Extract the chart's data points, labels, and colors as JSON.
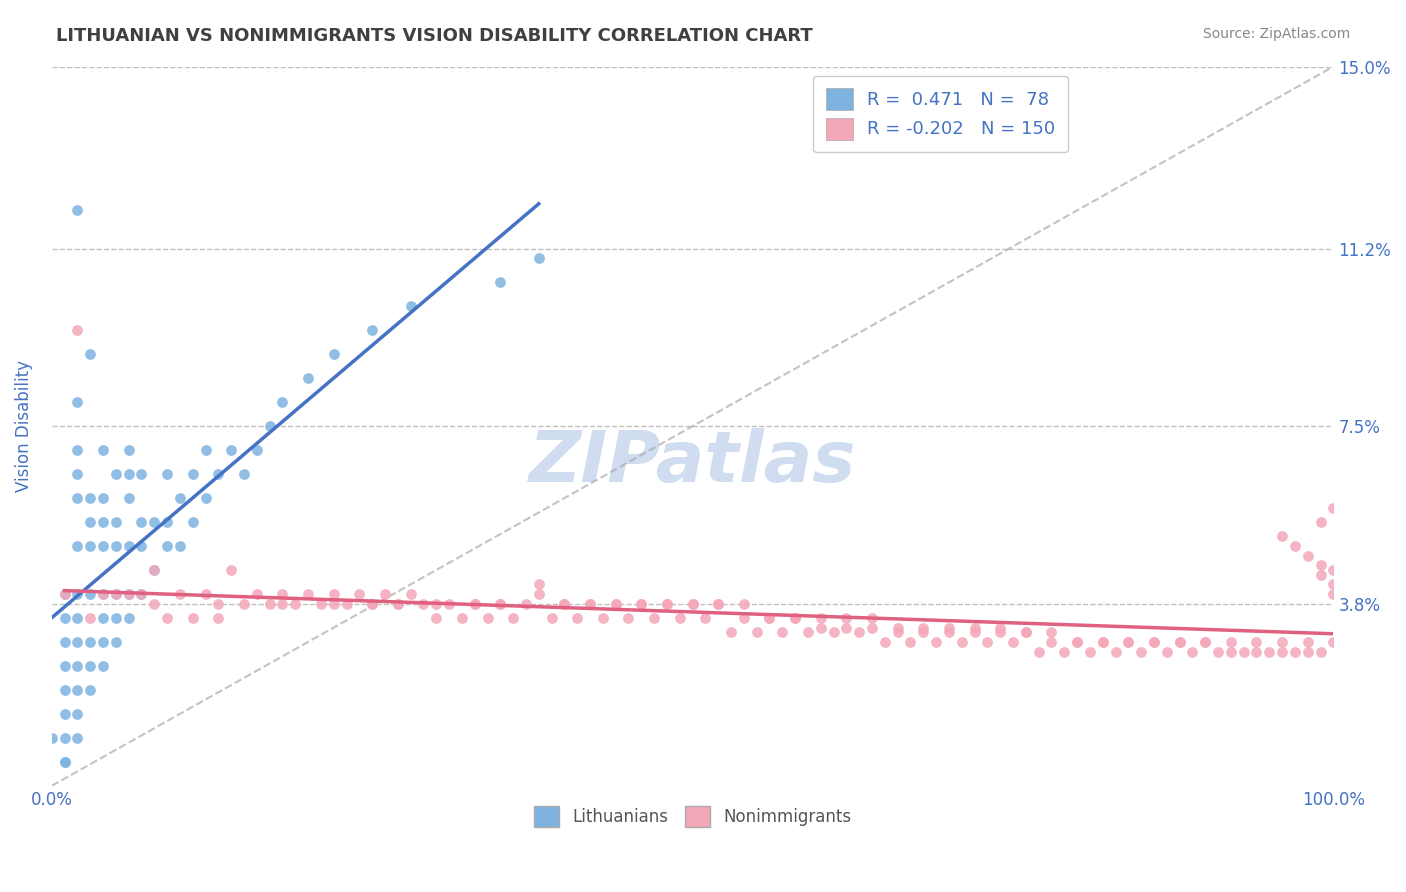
{
  "title": "LITHUANIAN VS NONIMMIGRANTS VISION DISABILITY CORRELATION CHART",
  "source": "Source: ZipAtlas.com",
  "xlabel": "",
  "ylabel": "Vision Disability",
  "legend_labels": [
    "Lithuanians",
    "Nonimmigrants"
  ],
  "r_values": [
    0.471,
    -0.202
  ],
  "n_values": [
    78,
    150
  ],
  "xlim": [
    0.0,
    1.0
  ],
  "ylim": [
    0.0,
    0.15
  ],
  "yticks": [
    0.038,
    0.075,
    0.112,
    0.15
  ],
  "ytick_labels": [
    "3.8%",
    "7.5%",
    "11.2%",
    "15.0%"
  ],
  "xtick_labels": [
    "0.0%",
    "100.0%"
  ],
  "blue_color": "#7EB3E0",
  "pink_color": "#F4A7B9",
  "blue_line_color": "#4472C4",
  "pink_line_color": "#E06080",
  "legend_text_color": "#4472C4",
  "axis_label_color": "#4472C4",
  "title_color": "#404040",
  "grid_color": "#C0C0C0",
  "watermark_text": "ZIPatlas",
  "watermark_color": "#D0DCF0",
  "ref_line_color": "#AAAAAA",
  "background_color": "#FFFFFF",
  "scatter_blue_x": [
    0.0,
    0.01,
    0.01,
    0.01,
    0.01,
    0.01,
    0.01,
    0.01,
    0.01,
    0.01,
    0.02,
    0.02,
    0.02,
    0.02,
    0.02,
    0.02,
    0.02,
    0.02,
    0.02,
    0.02,
    0.02,
    0.02,
    0.02,
    0.03,
    0.03,
    0.03,
    0.03,
    0.03,
    0.03,
    0.03,
    0.03,
    0.04,
    0.04,
    0.04,
    0.04,
    0.04,
    0.04,
    0.04,
    0.04,
    0.05,
    0.05,
    0.05,
    0.05,
    0.05,
    0.05,
    0.06,
    0.06,
    0.06,
    0.06,
    0.06,
    0.06,
    0.07,
    0.07,
    0.07,
    0.07,
    0.08,
    0.08,
    0.09,
    0.09,
    0.09,
    0.1,
    0.1,
    0.11,
    0.11,
    0.12,
    0.12,
    0.13,
    0.14,
    0.15,
    0.16,
    0.17,
    0.18,
    0.2,
    0.22,
    0.25,
    0.28,
    0.35,
    0.38
  ],
  "scatter_blue_y": [
    0.01,
    0.005,
    0.01,
    0.015,
    0.02,
    0.025,
    0.03,
    0.035,
    0.04,
    0.005,
    0.01,
    0.015,
    0.02,
    0.025,
    0.03,
    0.035,
    0.04,
    0.05,
    0.06,
    0.065,
    0.07,
    0.08,
    0.12,
    0.02,
    0.025,
    0.03,
    0.04,
    0.05,
    0.055,
    0.06,
    0.09,
    0.025,
    0.03,
    0.035,
    0.04,
    0.05,
    0.055,
    0.06,
    0.07,
    0.03,
    0.035,
    0.04,
    0.05,
    0.055,
    0.065,
    0.035,
    0.04,
    0.05,
    0.06,
    0.065,
    0.07,
    0.04,
    0.05,
    0.055,
    0.065,
    0.045,
    0.055,
    0.05,
    0.055,
    0.065,
    0.05,
    0.06,
    0.055,
    0.065,
    0.06,
    0.07,
    0.065,
    0.07,
    0.065,
    0.07,
    0.075,
    0.08,
    0.085,
    0.09,
    0.095,
    0.1,
    0.105,
    0.11
  ],
  "scatter_pink_x": [
    0.01,
    0.02,
    0.03,
    0.04,
    0.05,
    0.06,
    0.07,
    0.08,
    0.09,
    0.1,
    0.11,
    0.12,
    0.13,
    0.14,
    0.15,
    0.16,
    0.17,
    0.18,
    0.19,
    0.2,
    0.21,
    0.22,
    0.23,
    0.24,
    0.25,
    0.26,
    0.27,
    0.28,
    0.29,
    0.3,
    0.31,
    0.32,
    0.33,
    0.34,
    0.35,
    0.36,
    0.37,
    0.38,
    0.39,
    0.4,
    0.41,
    0.42,
    0.43,
    0.44,
    0.45,
    0.46,
    0.47,
    0.48,
    0.49,
    0.5,
    0.51,
    0.52,
    0.53,
    0.54,
    0.55,
    0.56,
    0.57,
    0.58,
    0.59,
    0.6,
    0.61,
    0.62,
    0.63,
    0.64,
    0.65,
    0.66,
    0.67,
    0.68,
    0.69,
    0.7,
    0.71,
    0.72,
    0.73,
    0.74,
    0.75,
    0.76,
    0.77,
    0.78,
    0.79,
    0.8,
    0.81,
    0.82,
    0.83,
    0.84,
    0.85,
    0.86,
    0.87,
    0.88,
    0.89,
    0.9,
    0.91,
    0.92,
    0.93,
    0.94,
    0.95,
    0.96,
    0.97,
    0.98,
    0.99,
    1.0,
    0.08,
    0.13,
    0.18,
    0.22,
    0.25,
    0.27,
    0.3,
    0.33,
    0.35,
    0.38,
    0.4,
    0.42,
    0.44,
    0.46,
    0.48,
    0.5,
    0.52,
    0.54,
    0.56,
    0.58,
    0.6,
    0.62,
    0.64,
    0.66,
    0.68,
    0.7,
    0.72,
    0.74,
    0.76,
    0.78,
    0.8,
    0.82,
    0.84,
    0.86,
    0.88,
    0.9,
    0.92,
    0.94,
    0.96,
    0.98,
    0.99,
    1.0,
    0.96,
    0.97,
    0.98,
    0.99,
    1.0,
    0.99,
    1.0,
    1.0
  ],
  "scatter_pink_y": [
    0.04,
    0.095,
    0.035,
    0.04,
    0.04,
    0.04,
    0.04,
    0.045,
    0.035,
    0.04,
    0.035,
    0.04,
    0.035,
    0.045,
    0.038,
    0.04,
    0.038,
    0.04,
    0.038,
    0.04,
    0.038,
    0.04,
    0.038,
    0.04,
    0.038,
    0.04,
    0.038,
    0.04,
    0.038,
    0.035,
    0.038,
    0.035,
    0.038,
    0.035,
    0.038,
    0.035,
    0.038,
    0.04,
    0.035,
    0.038,
    0.035,
    0.038,
    0.035,
    0.038,
    0.035,
    0.038,
    0.035,
    0.038,
    0.035,
    0.038,
    0.035,
    0.038,
    0.032,
    0.038,
    0.032,
    0.035,
    0.032,
    0.035,
    0.032,
    0.035,
    0.032,
    0.035,
    0.032,
    0.035,
    0.03,
    0.032,
    0.03,
    0.032,
    0.03,
    0.032,
    0.03,
    0.032,
    0.03,
    0.032,
    0.03,
    0.032,
    0.028,
    0.03,
    0.028,
    0.03,
    0.028,
    0.03,
    0.028,
    0.03,
    0.028,
    0.03,
    0.028,
    0.03,
    0.028,
    0.03,
    0.028,
    0.03,
    0.028,
    0.03,
    0.028,
    0.03,
    0.028,
    0.03,
    0.028,
    0.03,
    0.038,
    0.038,
    0.038,
    0.038,
    0.038,
    0.038,
    0.038,
    0.038,
    0.038,
    0.042,
    0.038,
    0.038,
    0.038,
    0.038,
    0.038,
    0.038,
    0.038,
    0.035,
    0.035,
    0.035,
    0.033,
    0.033,
    0.033,
    0.033,
    0.033,
    0.033,
    0.033,
    0.033,
    0.032,
    0.032,
    0.03,
    0.03,
    0.03,
    0.03,
    0.03,
    0.03,
    0.028,
    0.028,
    0.028,
    0.028,
    0.055,
    0.045,
    0.052,
    0.05,
    0.048,
    0.046,
    0.058,
    0.044,
    0.042,
    0.04
  ]
}
